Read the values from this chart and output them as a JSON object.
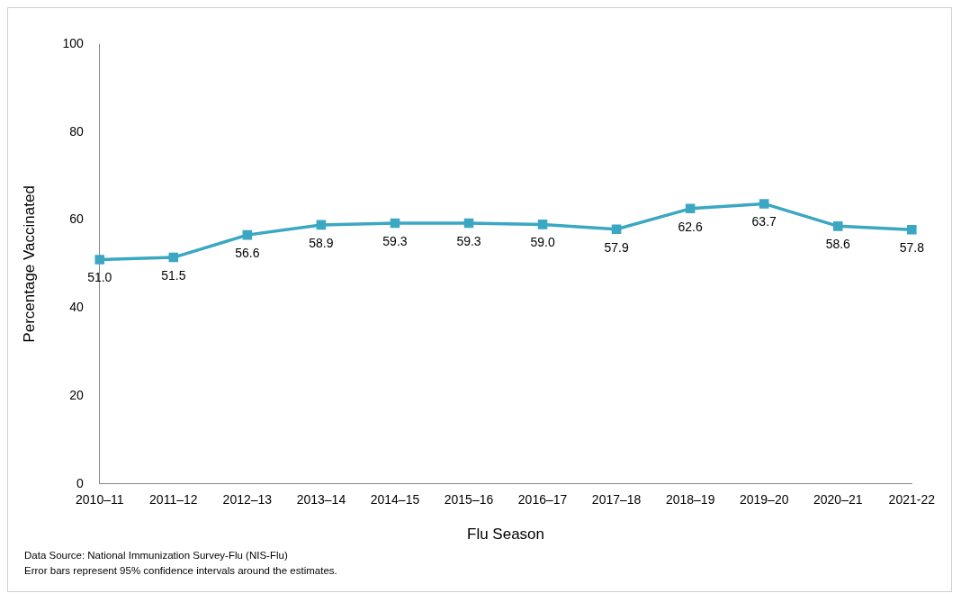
{
  "chart_data": {
    "type": "line",
    "xlabel": "Flu Season",
    "ylabel": "Percentage Vaccinated",
    "categories": [
      "2010–11",
      "2011–12",
      "2012–13",
      "2013–14",
      "2014–15",
      "2015–16",
      "2016–17",
      "2017–18",
      "2018–19",
      "2019–20",
      "2020–21",
      "2021-22"
    ],
    "values": [
      51.0,
      51.5,
      56.6,
      58.9,
      59.3,
      59.3,
      59.0,
      57.9,
      62.6,
      63.7,
      58.6,
      57.8
    ],
    "value_labels": [
      "51.0",
      "51.5",
      "56.6",
      "58.9",
      "59.3",
      "59.3",
      "59.0",
      "57.9",
      "62.6",
      "63.7",
      "58.6",
      "57.8"
    ],
    "color": "#3ba7c2",
    "marker": "square",
    "line_style": "solid",
    "grid": false,
    "legend": false,
    "ylim": [
      0,
      100
    ],
    "yticks": [
      0,
      20,
      40,
      60,
      80,
      100
    ],
    "annotations": [
      "Data Source: National Immunization Survey-Flu (NIS-Flu)",
      "Error bars represent 95% confidence intervals around the estimates."
    ]
  }
}
